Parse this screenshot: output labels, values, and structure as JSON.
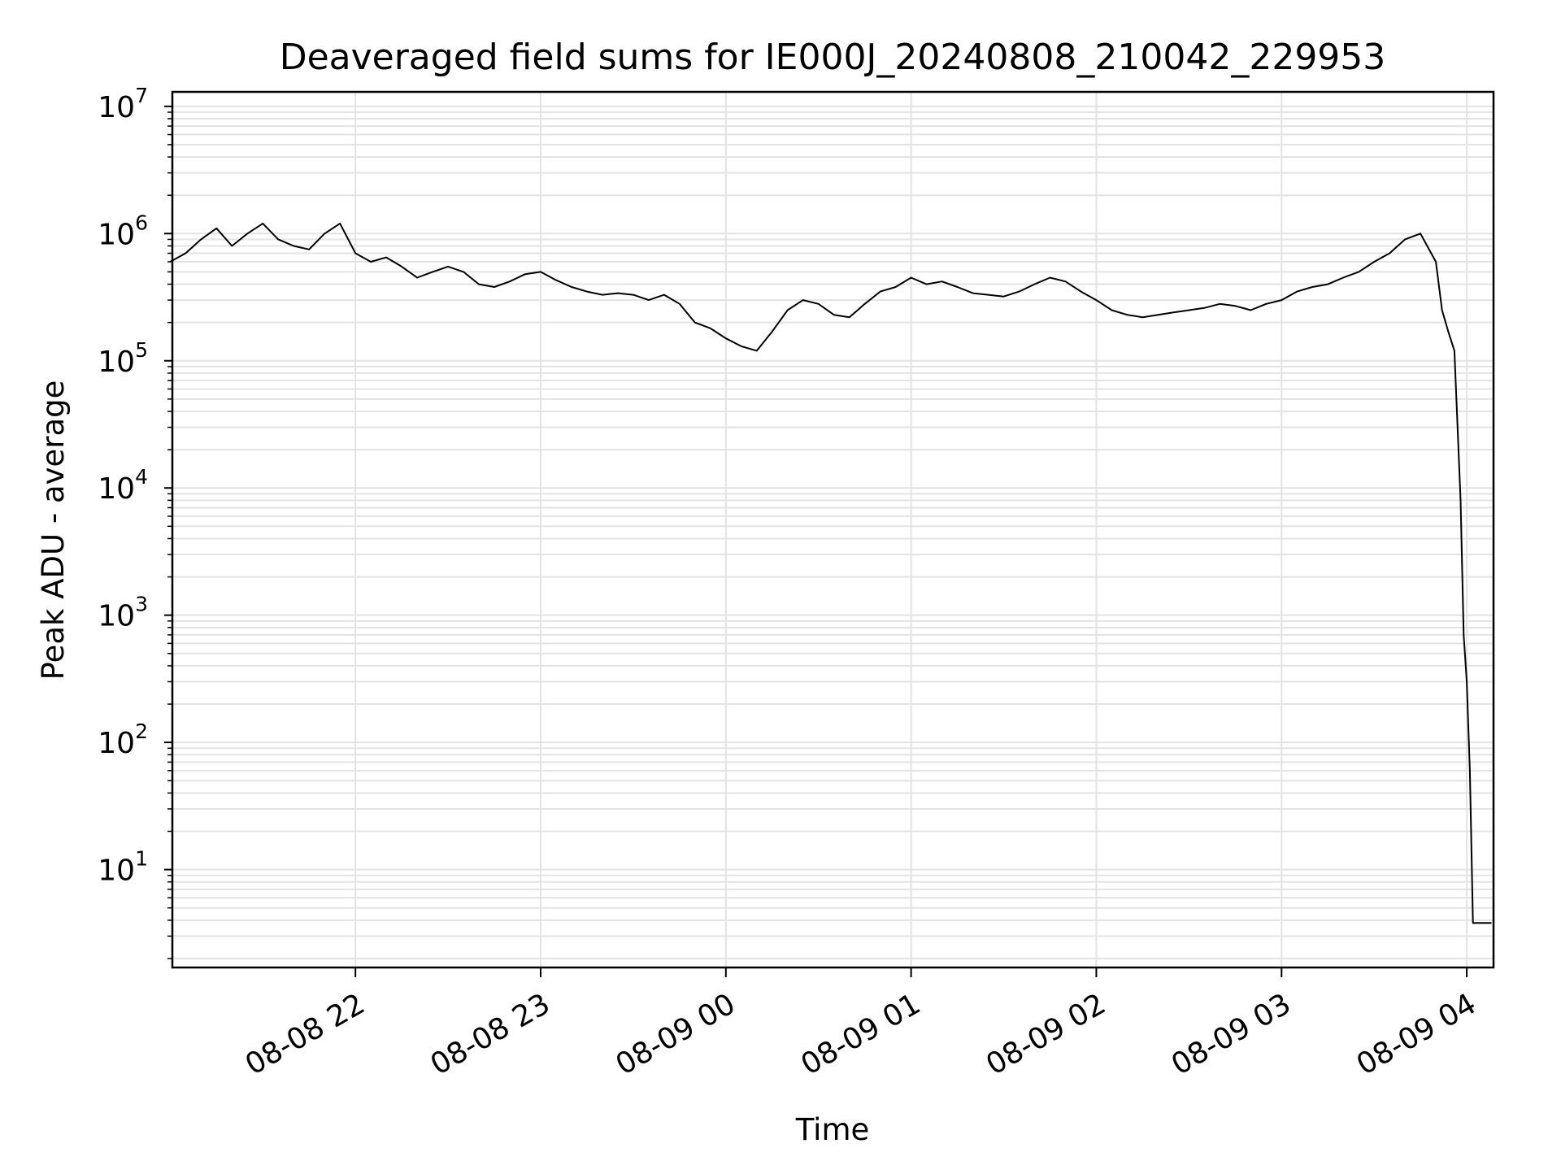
{
  "chart_data": {
    "type": "line",
    "title": "Deaveraged field sums for IE000J_20240808_210042_229953",
    "xlabel": "Time",
    "ylabel": "Peak ADU - average",
    "yscale": "log",
    "ylim": [
      1.7,
      13000000
    ],
    "xlim": [
      "2024-08-08 21:00:42",
      "2024-08-09 04:08:40"
    ],
    "grid": true,
    "legend": "none",
    "line_color": "#000000",
    "grid_color": "#e3e3e3",
    "x_ticks": [
      {
        "time": "2024-08-08 22:00",
        "label": "08-08 22"
      },
      {
        "time": "2024-08-08 23:00",
        "label": "08-08 23"
      },
      {
        "time": "2024-08-09 00:00",
        "label": "08-09 00"
      },
      {
        "time": "2024-08-09 01:00",
        "label": "08-09 01"
      },
      {
        "time": "2024-08-09 02:00",
        "label": "08-09 02"
      },
      {
        "time": "2024-08-09 03:00",
        "label": "08-09 03"
      },
      {
        "time": "2024-08-09 04:00",
        "label": "08-09 04"
      }
    ],
    "y_ticks": [
      {
        "value": 10,
        "base": "10",
        "exp": "1"
      },
      {
        "value": 100,
        "base": "10",
        "exp": "2"
      },
      {
        "value": 1000,
        "base": "10",
        "exp": "3"
      },
      {
        "value": 10000,
        "base": "10",
        "exp": "4"
      },
      {
        "value": 100000,
        "base": "10",
        "exp": "5"
      },
      {
        "value": 1000000,
        "base": "10",
        "exp": "6"
      },
      {
        "value": 10000000,
        "base": "10",
        "exp": "7"
      }
    ],
    "series": [
      {
        "x": [
          "2024-08-08 21:00",
          "2024-08-08 21:05",
          "2024-08-08 21:10",
          "2024-08-08 21:15",
          "2024-08-08 21:20",
          "2024-08-08 21:25",
          "2024-08-08 21:30",
          "2024-08-08 21:35",
          "2024-08-08 21:40",
          "2024-08-08 21:45",
          "2024-08-08 21:50",
          "2024-08-08 21:55",
          "2024-08-08 22:00",
          "2024-08-08 22:05",
          "2024-08-08 22:10",
          "2024-08-08 22:15",
          "2024-08-08 22:20",
          "2024-08-08 22:25",
          "2024-08-08 22:30",
          "2024-08-08 22:35",
          "2024-08-08 22:40",
          "2024-08-08 22:45",
          "2024-08-08 22:50",
          "2024-08-08 22:55",
          "2024-08-08 23:00",
          "2024-08-08 23:05",
          "2024-08-08 23:10",
          "2024-08-08 23:15",
          "2024-08-08 23:20",
          "2024-08-08 23:25",
          "2024-08-08 23:30",
          "2024-08-08 23:35",
          "2024-08-08 23:40",
          "2024-08-08 23:45",
          "2024-08-08 23:50",
          "2024-08-08 23:55",
          "2024-08-09 00:00",
          "2024-08-09 00:05",
          "2024-08-09 00:10",
          "2024-08-09 00:15",
          "2024-08-09 00:20",
          "2024-08-09 00:25",
          "2024-08-09 00:30",
          "2024-08-09 00:35",
          "2024-08-09 00:40",
          "2024-08-09 00:45",
          "2024-08-09 00:50",
          "2024-08-09 00:55",
          "2024-08-09 01:00",
          "2024-08-09 01:05",
          "2024-08-09 01:10",
          "2024-08-09 01:15",
          "2024-08-09 01:20",
          "2024-08-09 01:25",
          "2024-08-09 01:30",
          "2024-08-09 01:35",
          "2024-08-09 01:40",
          "2024-08-09 01:45",
          "2024-08-09 01:50",
          "2024-08-09 01:55",
          "2024-08-09 02:00",
          "2024-08-09 02:05",
          "2024-08-09 02:10",
          "2024-08-09 02:15",
          "2024-08-09 02:20",
          "2024-08-09 02:25",
          "2024-08-09 02:30",
          "2024-08-09 02:35",
          "2024-08-09 02:40",
          "2024-08-09 02:45",
          "2024-08-09 02:50",
          "2024-08-09 02:55",
          "2024-08-09 03:00",
          "2024-08-09 03:05",
          "2024-08-09 03:10",
          "2024-08-09 03:15",
          "2024-08-09 03:20",
          "2024-08-09 03:25",
          "2024-08-09 03:30",
          "2024-08-09 03:35",
          "2024-08-09 03:40",
          "2024-08-09 03:45",
          "2024-08-09 03:50",
          "2024-08-09 03:52",
          "2024-08-09 03:54",
          "2024-08-09 03:56",
          "2024-08-09 03:58",
          "2024-08-09 03:59",
          "2024-08-09 04:00",
          "2024-08-09 04:01",
          "2024-08-09 04:02",
          "2024-08-09 04:03",
          "2024-08-09 04:04",
          "2024-08-09 04:06",
          "2024-08-09 04:08"
        ],
        "y": [
          600000,
          700000,
          900000,
          1100000,
          800000,
          1000000,
          1200000,
          900000,
          800000,
          750000,
          1000000,
          1200000,
          700000,
          600000,
          650000,
          550000,
          450000,
          500000,
          550000,
          500000,
          400000,
          380000,
          420000,
          480000,
          500000,
          430000,
          380000,
          350000,
          330000,
          340000,
          330000,
          300000,
          330000,
          280000,
          200000,
          180000,
          150000,
          130000,
          120000,
          170000,
          250000,
          300000,
          280000,
          230000,
          220000,
          280000,
          350000,
          380000,
          450000,
          400000,
          420000,
          380000,
          340000,
          330000,
          320000,
          350000,
          400000,
          450000,
          420000,
          350000,
          300000,
          250000,
          230000,
          220000,
          230000,
          240000,
          250000,
          260000,
          280000,
          270000,
          250000,
          280000,
          300000,
          350000,
          380000,
          400000,
          450000,
          500000,
          600000,
          700000,
          900000,
          1000000,
          600000,
          250000,
          170000,
          120000,
          8000,
          700,
          300,
          60,
          3.8,
          3.8,
          3.8,
          3.8,
          3.8
        ]
      }
    ]
  }
}
